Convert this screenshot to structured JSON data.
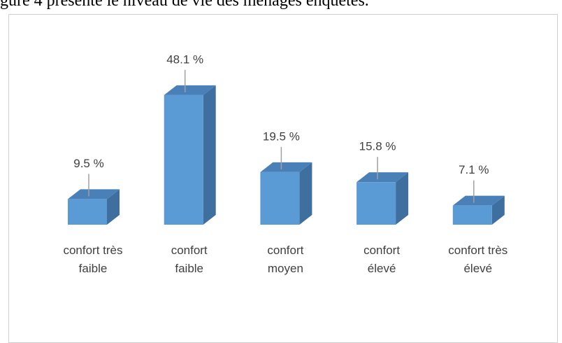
{
  "page_text": "gure 4 présente le niveau de vie des ménages enquêtés.",
  "chart_data": {
    "type": "bar3d",
    "categories": [
      "confort très faible",
      "confort faible",
      "confort moyen",
      "confort élevé",
      "confort très élevé"
    ],
    "values": [
      9.5,
      48.1,
      19.5,
      15.8,
      7.1
    ],
    "value_labels": [
      "9.5 %",
      "48.1 %",
      "19.5 %",
      "15.8 %",
      "7.1 %"
    ],
    "color": "#5b9bd5"
  }
}
